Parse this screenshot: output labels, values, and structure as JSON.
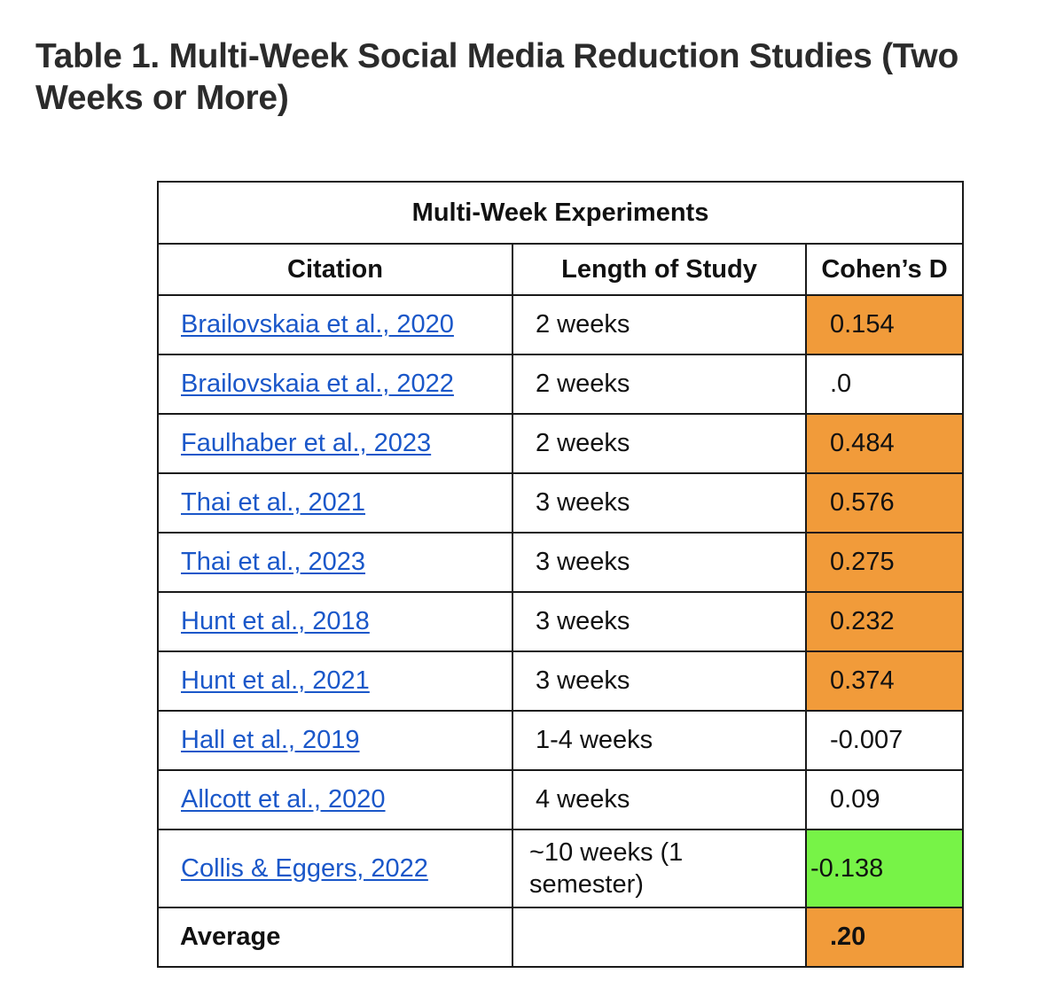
{
  "page": {
    "title": "Table 1. Multi-Week Social Media Reduction Studies (Two Weeks or More)"
  },
  "table": {
    "caption": "Multi-Week Experiments",
    "headers": {
      "citation": "Citation",
      "length": "Length of Study",
      "effect": "Cohen’s D"
    },
    "rows": [
      {
        "citation": "Brailovskaia et al., 2020",
        "length": "2 weeks",
        "effect": "0.154",
        "highlight": "orange"
      },
      {
        "citation": "Brailovskaia et al., 2022",
        "length": "2 weeks",
        "effect": ".0",
        "highlight": "none"
      },
      {
        "citation": "Faulhaber et al., 2023",
        "length": "2 weeks",
        "effect": "0.484",
        "highlight": "orange"
      },
      {
        "citation": "Thai et al., 2021",
        "length": "3 weeks",
        "effect": "0.576",
        "highlight": "orange"
      },
      {
        "citation": "Thai et al., 2023",
        "length": "3 weeks",
        "effect": "0.275",
        "highlight": "orange"
      },
      {
        "citation": "Hunt et al., 2018",
        "length": "3 weeks",
        "effect": "0.232",
        "highlight": "orange"
      },
      {
        "citation": "Hunt et al., 2021",
        "length": "3 weeks",
        "effect": "0.374",
        "highlight": "orange"
      },
      {
        "citation": "Hall et al., 2019",
        "length": "1-4 weeks",
        "effect": "-0.007",
        "highlight": "none"
      },
      {
        "citation": "Allcott et al., 2020",
        "length": "4 weeks",
        "effect": "0.09",
        "highlight": "none"
      },
      {
        "citation": "Collis & Eggers, 2022",
        "length_line1": "~10 weeks (1",
        "length_line2": "semester)",
        "effect": "-0.138",
        "highlight": "green"
      }
    ],
    "average": {
      "label": "Average",
      "length": "",
      "effect": ".20",
      "highlight": "orange"
    }
  },
  "colors": {
    "orange": "#f19b3a",
    "green": "#77f347",
    "link": "#1a57c9",
    "border": "#1a1a1a",
    "title": "#2b2b2b"
  }
}
